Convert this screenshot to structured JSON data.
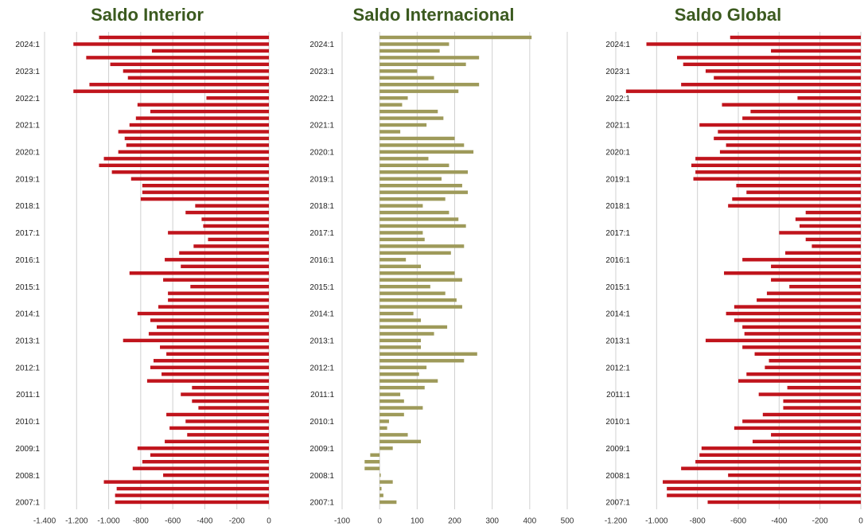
{
  "chart_data": [
    {
      "type": "bar",
      "orientation": "horizontal",
      "title": "Saldo Interior",
      "color": "#c0141c",
      "categories": [
        "2007:1",
        null,
        null,
        null,
        "2008:1",
        null,
        null,
        null,
        "2009:1",
        null,
        null,
        null,
        "2010:1",
        null,
        null,
        null,
        "2011:1",
        null,
        null,
        null,
        "2012:1",
        null,
        null,
        null,
        "2013:1",
        null,
        null,
        null,
        "2014:1",
        null,
        null,
        null,
        "2015:1",
        null,
        null,
        null,
        "2016:1",
        null,
        null,
        null,
        "2017:1",
        null,
        null,
        null,
        "2018:1",
        null,
        null,
        null,
        "2019:1",
        null,
        null,
        null,
        "2020:1",
        null,
        null,
        null,
        "2021:1",
        null,
        null,
        null,
        "2022:1",
        null,
        null,
        null,
        "2023:1",
        null,
        null,
        null,
        "2024:1",
        null
      ],
      "values": [
        -960,
        -960,
        -950,
        -1030,
        -660,
        -850,
        -790,
        -740,
        -820,
        -650,
        -510,
        -620,
        -520,
        -640,
        -440,
        -480,
        -550,
        -480,
        -760,
        -670,
        -740,
        -720,
        -640,
        -680,
        -910,
        -750,
        -700,
        -740,
        -820,
        -690,
        -630,
        -630,
        -490,
        -660,
        -870,
        -550,
        -650,
        -560,
        -470,
        -380,
        -630,
        -410,
        -420,
        -520,
        -460,
        -800,
        -790,
        -790,
        -860,
        -980,
        -1060,
        -1030,
        -940,
        -890,
        -900,
        -940,
        -870,
        -830,
        -740,
        -820,
        -390,
        -1220,
        -1120,
        -880,
        -910,
        -990,
        -1140,
        -730,
        -1220,
        -1060
      ],
      "xlim": [
        -1400,
        0
      ],
      "xticks": [
        {
          "value": -1400,
          "label": "-1.400"
        },
        {
          "value": -1200,
          "label": "-1.200"
        },
        {
          "value": -1000,
          "label": "-1.000"
        },
        -800,
        -600,
        -400,
        -200,
        0
      ],
      "grid": true
    },
    {
      "type": "bar",
      "orientation": "horizontal",
      "title": "Saldo Internacional",
      "color": "#9e9a5a",
      "categories": [
        "2007:1",
        null,
        null,
        null,
        "2008:1",
        null,
        null,
        null,
        "2009:1",
        null,
        null,
        null,
        "2010:1",
        null,
        null,
        null,
        "2011:1",
        null,
        null,
        null,
        "2012:1",
        null,
        null,
        null,
        "2013:1",
        null,
        null,
        null,
        "2014:1",
        null,
        null,
        null,
        "2015:1",
        null,
        null,
        null,
        "2016:1",
        null,
        null,
        null,
        "2017:1",
        null,
        null,
        null,
        "2018:1",
        null,
        null,
        null,
        "2019:1",
        null,
        null,
        null,
        "2020:1",
        null,
        null,
        null,
        "2021:1",
        null,
        null,
        null,
        "2022:1",
        null,
        null,
        null,
        "2023:1",
        null,
        null,
        null,
        "2024:1",
        null
      ],
      "values": [
        45,
        10,
        5,
        35,
        3,
        -40,
        -40,
        -25,
        35,
        110,
        75,
        20,
        25,
        65,
        115,
        65,
        55,
        120,
        155,
        105,
        125,
        225,
        260,
        110,
        110,
        145,
        180,
        110,
        90,
        220,
        205,
        175,
        135,
        220,
        200,
        110,
        70,
        190,
        225,
        120,
        115,
        230,
        210,
        185,
        115,
        175,
        235,
        220,
        165,
        235,
        185,
        130,
        250,
        225,
        200,
        55,
        125,
        170,
        155,
        60,
        75,
        210,
        265,
        145,
        100,
        230,
        265,
        160,
        185,
        405
      ],
      "xlim": [
        -100,
        500
      ],
      "xticks": [
        -100,
        0,
        100,
        200,
        300,
        400,
        500
      ],
      "grid": true
    },
    {
      "type": "bar",
      "orientation": "horizontal",
      "title": "Saldo Global",
      "color": "#c0141c",
      "categories": [
        "2007:1",
        null,
        null,
        null,
        "2008:1",
        null,
        null,
        null,
        "2009:1",
        null,
        null,
        null,
        "2010:1",
        null,
        null,
        null,
        "2011:1",
        null,
        null,
        null,
        "2012:1",
        null,
        null,
        null,
        "2013:1",
        null,
        null,
        null,
        "2014:1",
        null,
        null,
        null,
        "2015:1",
        null,
        null,
        null,
        "2016:1",
        null,
        null,
        null,
        "2017:1",
        null,
        null,
        null,
        "2018:1",
        null,
        null,
        null,
        "2019:1",
        null,
        null,
        null,
        "2020:1",
        null,
        null,
        null,
        "2021:1",
        null,
        null,
        null,
        "2022:1",
        null,
        null,
        null,
        "2023:1",
        null,
        null,
        null,
        "2024:1",
        null
      ],
      "values": [
        -750,
        -950,
        -950,
        -970,
        -650,
        -880,
        -810,
        -790,
        -780,
        -530,
        -440,
        -620,
        -580,
        -480,
        -380,
        -380,
        -500,
        -360,
        -600,
        -560,
        -470,
        -450,
        -520,
        -580,
        -760,
        -570,
        -580,
        -620,
        -660,
        -620,
        -510,
        -460,
        -350,
        -440,
        -670,
        -440,
        -580,
        -370,
        -240,
        -270,
        -400,
        -300,
        -320,
        -270,
        -650,
        -630,
        -560,
        -610,
        -820,
        -810,
        -830,
        -810,
        -690,
        -660,
        -720,
        -700,
        -790,
        -580,
        -540,
        -680,
        -310,
        -1150,
        -880,
        -720,
        -760,
        -870,
        -900,
        -440,
        -1050,
        -640
      ],
      "xlim": [
        -1200,
        0
      ],
      "xticks": [
        {
          "value": -1200,
          "label": "-1.200"
        },
        {
          "value": -1000,
          "label": "-1.000"
        },
        -800,
        -600,
        -400,
        -200,
        0
      ],
      "grid": true
    }
  ]
}
